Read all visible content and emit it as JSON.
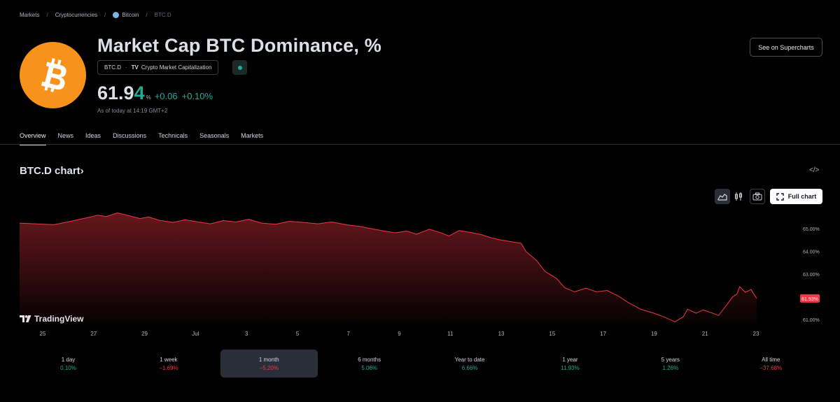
{
  "breadcrumb": [
    "Markets",
    "Cryptocurrencies",
    "Bitcoin",
    "BTC.D"
  ],
  "title": "Market Cap BTC Dominance, %",
  "symbol": {
    "ticker": "BTC.D",
    "source": "Crypto Market Capitalization",
    "source_logo": "TV",
    "status": "market-open"
  },
  "price": {
    "main": "61.9",
    "last_digit": "4",
    "unit": "%",
    "change": "+0.06",
    "change_pct": "+0.10%",
    "as_of": "As of today at 14:19 GMT+2"
  },
  "buttons": {
    "supercharts": "See on Supercharts",
    "full_chart": "Full chart"
  },
  "tabs": [
    "Overview",
    "News",
    "Ideas",
    "Discussions",
    "Technicals",
    "Seasonals",
    "Markets"
  ],
  "active_tab": "Overview",
  "chart_section": {
    "title": "BTC.D chart",
    "chevron": "›",
    "embed_icon": "</>",
    "watermark": "TradingView"
  },
  "colors": {
    "accent_up": "#22ab94",
    "accent_down": "#f23645",
    "chart_line": "#f23645",
    "btc_orange": "#f7931a"
  },
  "chart_data": {
    "type": "area",
    "x_tick_labels": [
      "25",
      "27",
      "29",
      "Jul",
      "3",
      "5",
      "7",
      "9",
      "11",
      "13",
      "15",
      "17",
      "19",
      "21",
      "23"
    ],
    "y_tick_labels": [
      "65.00%",
      "64.00%",
      "63.00%",
      "61.00%"
    ],
    "y_ticks": [
      65,
      64,
      63,
      61
    ],
    "ylim": [
      60.6,
      65.9
    ],
    "last_value_label": "61.93%",
    "last_value": 61.93,
    "points": [
      [
        0,
        65.25
      ],
      [
        1.6,
        65.18
      ],
      [
        3.2,
        65.28
      ],
      [
        5,
        65.4
      ],
      [
        6.8,
        65.52
      ],
      [
        7.8,
        65.6
      ],
      [
        9,
        65.54
      ],
      [
        10.6,
        65.7
      ],
      [
        12.2,
        65.58
      ],
      [
        13.8,
        65.45
      ],
      [
        15,
        65.52
      ],
      [
        16.4,
        65.38
      ],
      [
        18.5,
        65.28
      ],
      [
        20.2,
        65.4
      ],
      [
        22,
        65.3
      ],
      [
        23.8,
        65.22
      ],
      [
        25.6,
        65.36
      ],
      [
        27.4,
        65.3
      ],
      [
        29.2,
        65.42
      ],
      [
        31,
        65.25
      ],
      [
        33,
        65.2
      ],
      [
        35,
        65.33
      ],
      [
        37,
        65.28
      ],
      [
        39,
        65.22
      ],
      [
        41,
        65.3
      ],
      [
        43,
        65.18
      ],
      [
        45,
        65.1
      ],
      [
        47,
        64.98
      ],
      [
        48.8,
        64.88
      ],
      [
        50,
        64.82
      ],
      [
        51.6,
        64.9
      ],
      [
        53,
        64.76
      ],
      [
        54.8,
        64.98
      ],
      [
        56.4,
        64.83
      ],
      [
        57.6,
        64.68
      ],
      [
        59,
        64.92
      ],
      [
        60.6,
        64.84
      ],
      [
        62.2,
        64.74
      ],
      [
        63.8,
        64.58
      ],
      [
        65,
        64.5
      ],
      [
        66.6,
        64.42
      ],
      [
        67.8,
        64.36
      ],
      [
        68.5,
        64.0
      ],
      [
        70,
        63.6
      ],
      [
        71.2,
        63.12
      ],
      [
        72.8,
        62.82
      ],
      [
        74,
        62.4
      ],
      [
        75.4,
        62.22
      ],
      [
        77,
        62.38
      ],
      [
        78.5,
        62.22
      ],
      [
        80,
        62.28
      ],
      [
        81.5,
        62.05
      ],
      [
        83,
        61.75
      ],
      [
        84.8,
        61.45
      ],
      [
        86.6,
        61.28
      ],
      [
        88.2,
        61.1
      ],
      [
        89.6,
        60.9
      ],
      [
        90.8,
        61.12
      ],
      [
        91.4,
        61.46
      ],
      [
        92.6,
        61.28
      ],
      [
        93.6,
        61.42
      ],
      [
        94.8,
        61.3
      ],
      [
        95.8,
        61.18
      ],
      [
        96.8,
        61.58
      ],
      [
        97.8,
        62.0
      ],
      [
        98.4,
        62.12
      ],
      [
        98.8,
        62.45
      ],
      [
        99.6,
        62.2
      ],
      [
        100.4,
        62.32
      ],
      [
        101.2,
        61.93
      ]
    ]
  },
  "periods": [
    {
      "label": "1 day",
      "value": "0.10%",
      "dir": "up"
    },
    {
      "label": "1 week",
      "value": "−1.69%",
      "dir": "down"
    },
    {
      "label": "1 month",
      "value": "−5.20%",
      "dir": "down"
    },
    {
      "label": "6 months",
      "value": "5.06%",
      "dir": "up"
    },
    {
      "label": "Year to date",
      "value": "6.66%",
      "dir": "up"
    },
    {
      "label": "1 year",
      "value": "11.93%",
      "dir": "up"
    },
    {
      "label": "5 years",
      "value": "1.26%",
      "dir": "up"
    },
    {
      "label": "All time",
      "value": "−37.68%",
      "dir": "down"
    }
  ],
  "active_period": "1 month"
}
